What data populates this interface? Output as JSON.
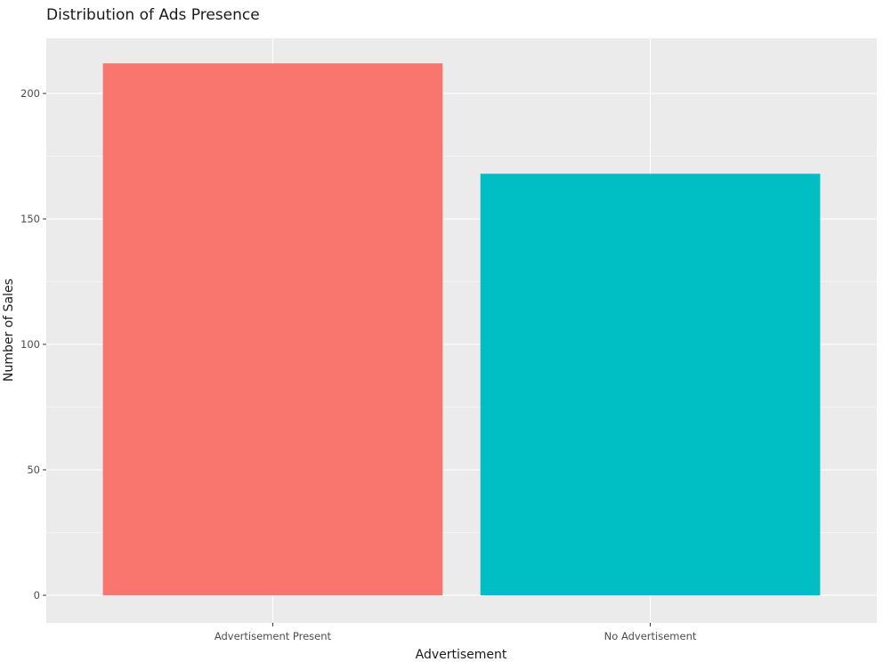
{
  "chart_data": {
    "type": "bar",
    "title": "Distribution of Ads Presence",
    "xlabel": "Advertisement",
    "ylabel": "Number of Sales",
    "categories": [
      "Advertisement Present",
      "No Advertisement"
    ],
    "values": [
      212,
      168
    ],
    "colors": [
      "#F8766D",
      "#00BFC4"
    ],
    "ylim": [
      -11,
      222
    ],
    "yticks": [
      0,
      50,
      100,
      150,
      200
    ],
    "panel_background": "#EBEBEB",
    "grid": true,
    "legend": "none"
  }
}
